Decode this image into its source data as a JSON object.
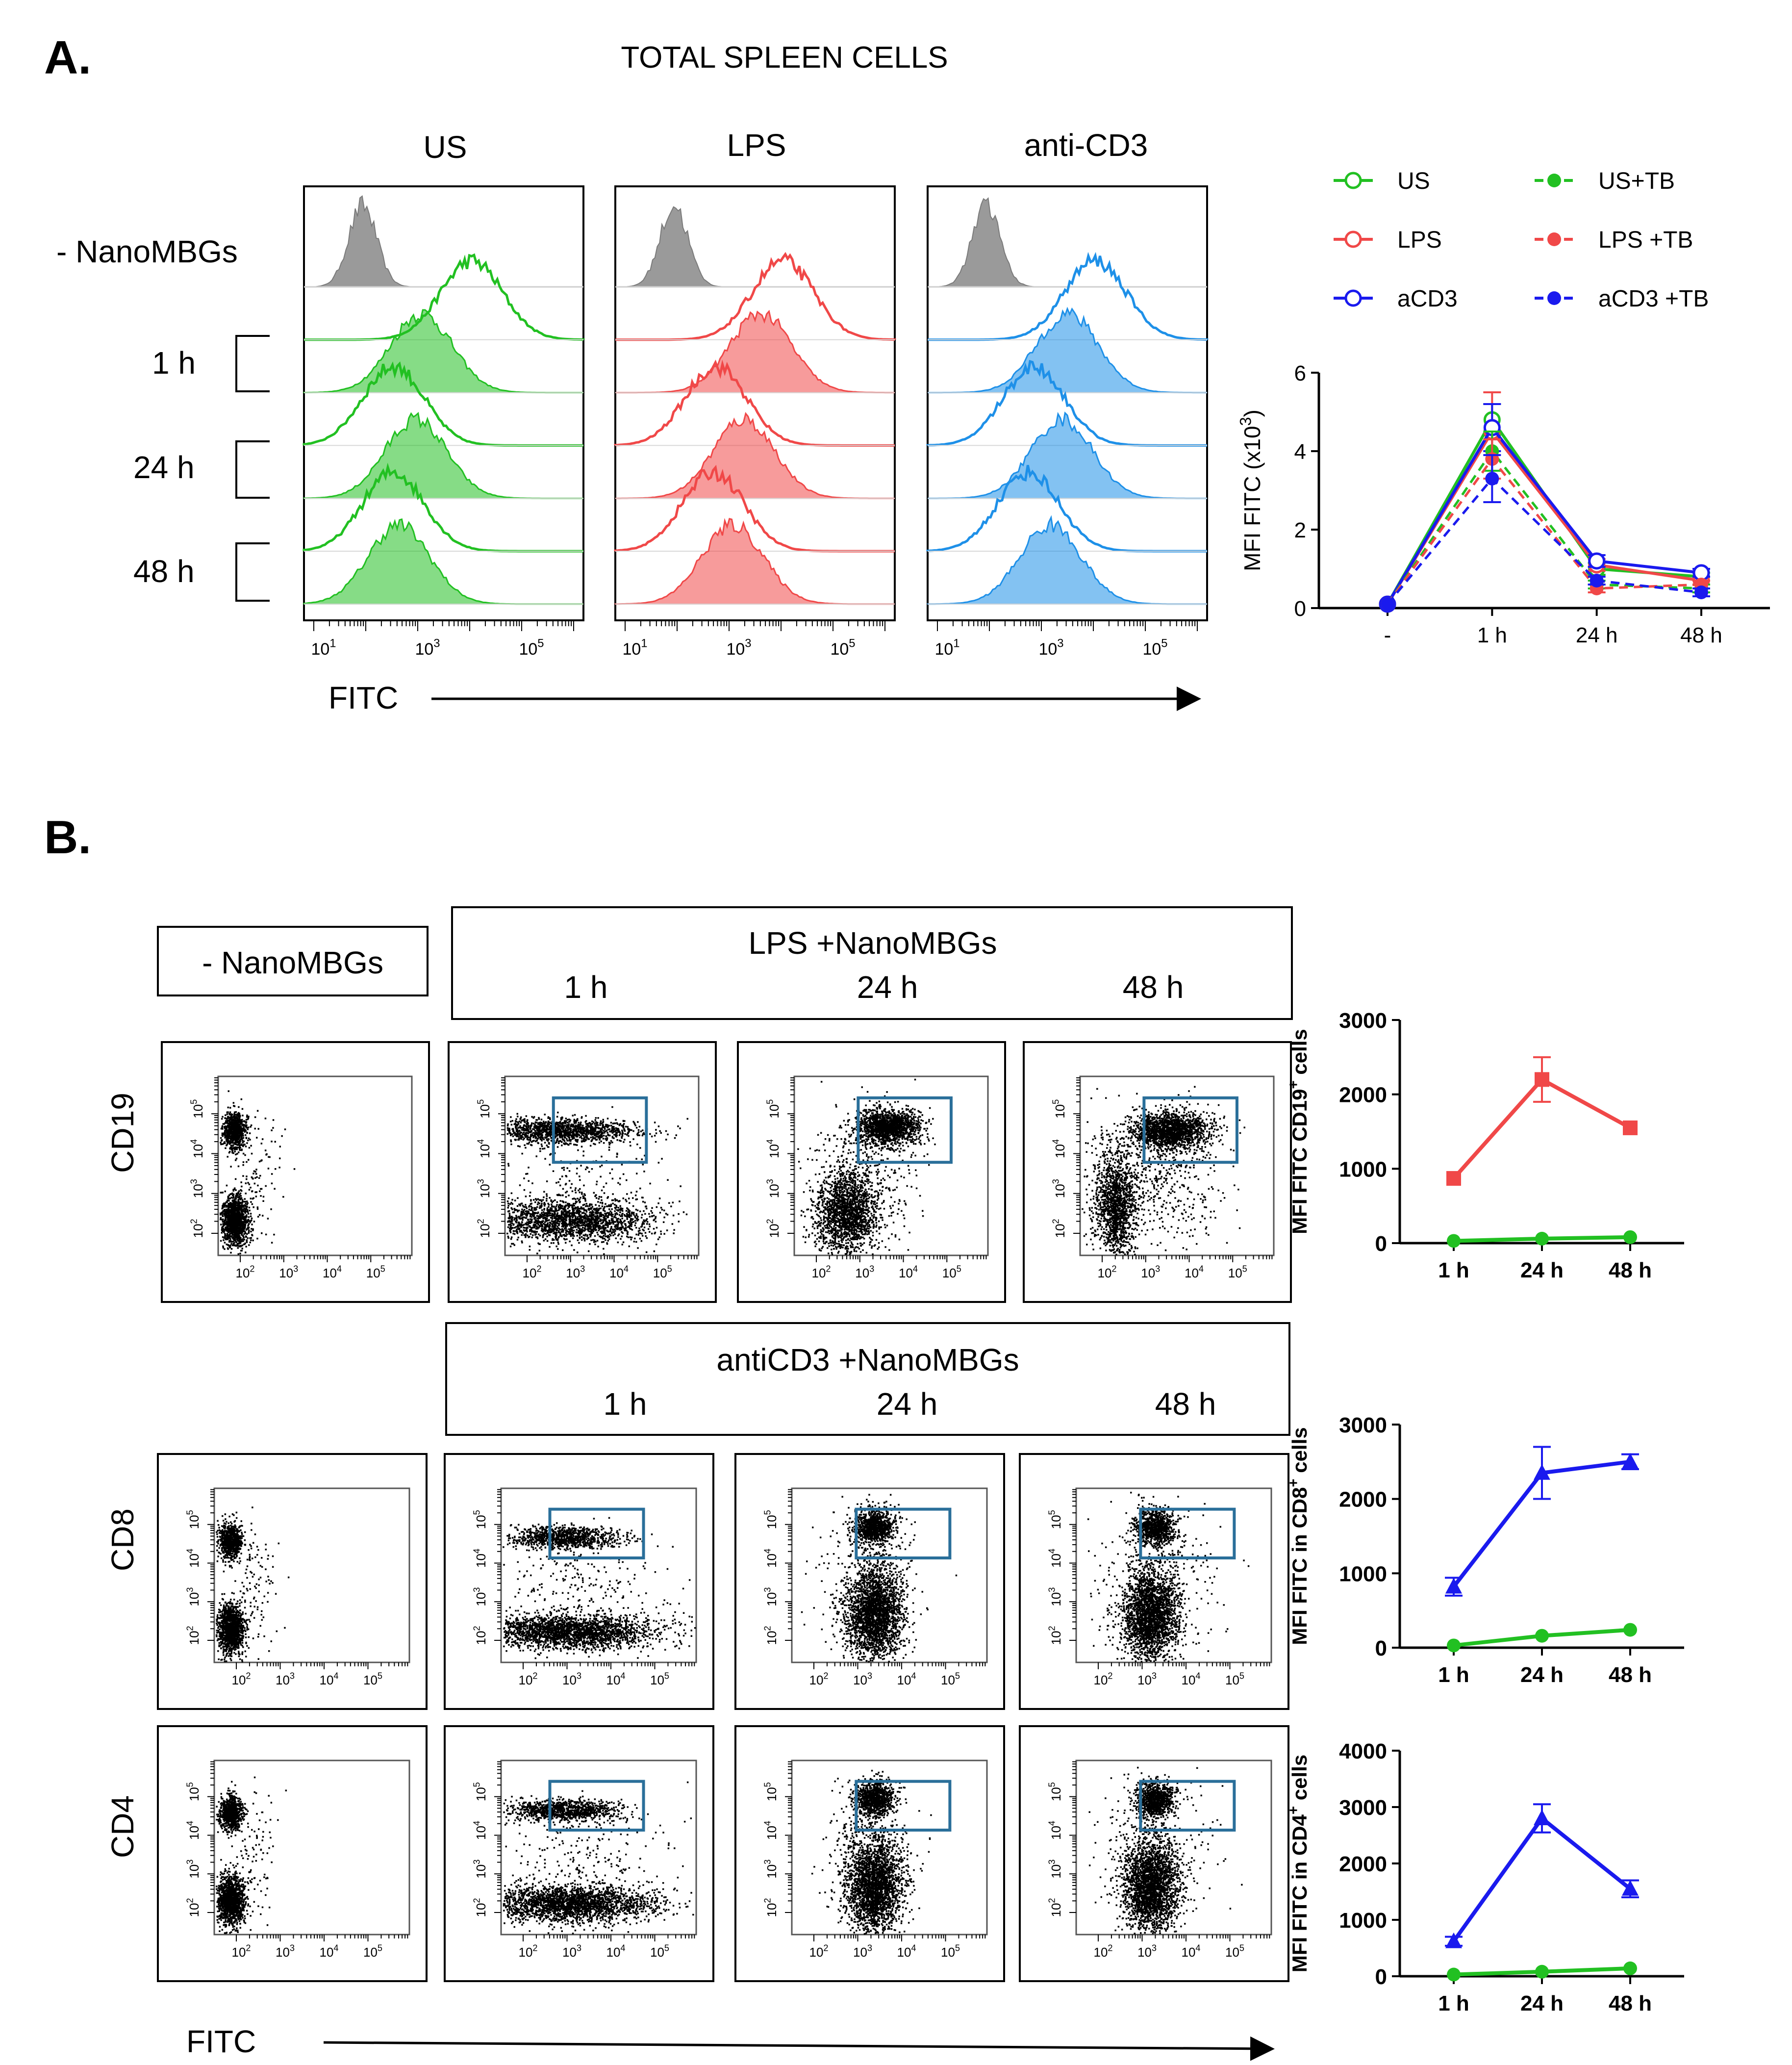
{
  "panel_a": {
    "letter": "A.",
    "title": "TOTAL SPLEEN CELLS",
    "columns": [
      "US",
      "LPS",
      "anti-CD3"
    ],
    "row_labels": [
      "- NanoMBGs",
      "1 h",
      "24 h",
      "48 h"
    ],
    "hist_xticks": [
      "10",
      "10",
      "10"
    ],
    "hist_xtick_exps": [
      "1",
      "3",
      "5"
    ],
    "fitc_label": "FITC"
  },
  "panel_b": {
    "letter": "B.",
    "neg_box_label": "- NanoMBGs",
    "lps_header": "LPS +NanoMBGs",
    "cd3_header": "antiCD3 +NanoMBGs",
    "time_labels": [
      "1 h",
      "24 h",
      "48 h"
    ],
    "row_labels": [
      "CD19",
      "CD8",
      "CD4"
    ],
    "dot_xtick_exps": [
      "2",
      "3",
      "4",
      "5"
    ],
    "dot_ytick_exps": [
      "2",
      "3",
      "4",
      "5"
    ],
    "fitc_label": "FITC"
  },
  "colors": {
    "green": "#22c022",
    "red": "#f04848",
    "blue": "#1a1aee",
    "lightblue": "#1e90e8",
    "gray": "#9a9a9a",
    "gate": "#2a6f9a"
  },
  "chart_data": [
    {
      "id": "mfi_total",
      "type": "line",
      "categories": [
        "-",
        "1 h",
        "24 h",
        "48 h"
      ],
      "ylabel": "MFI FITC (x10",
      "ylabel_sup": "3",
      "ylabel_tail": ")",
      "ylim": [
        0,
        6
      ],
      "yticks": [
        0,
        2,
        4,
        6
      ],
      "legend": [
        "US",
        "LPS",
        "aCD3",
        "US+TB",
        "LPS +TB",
        "aCD3 +TB"
      ],
      "series": [
        {
          "name": "US",
          "values": [
            0.1,
            4.8,
            1.0,
            0.8
          ],
          "err": [
            0,
            0.4,
            0.15,
            0.1
          ]
        },
        {
          "name": "LPS",
          "values": [
            0.1,
            4.5,
            1.1,
            0.7
          ],
          "err": [
            0,
            1.0,
            0.15,
            0.1
          ]
        },
        {
          "name": "aCD3",
          "values": [
            0.1,
            4.6,
            1.2,
            0.9
          ],
          "err": [
            0,
            0.6,
            0.15,
            0.1
          ]
        },
        {
          "name": "US+TB",
          "values": [
            0.1,
            4.0,
            0.6,
            0.5
          ],
          "err": [
            0,
            0.5,
            0.1,
            0.1
          ]
        },
        {
          "name": "LPS +TB",
          "values": [
            0.1,
            3.8,
            0.5,
            0.6
          ],
          "err": [
            0,
            0.5,
            0.1,
            0.1
          ]
        },
        {
          "name": "aCD3 +TB",
          "values": [
            0.1,
            3.3,
            0.7,
            0.4
          ],
          "err": [
            0,
            0.6,
            0.1,
            0.1
          ]
        }
      ]
    },
    {
      "id": "mfi_cd19",
      "type": "line",
      "categories": [
        "1 h",
        "24 h",
        "48 h"
      ],
      "ylabel": "MFI FITC CD19",
      "ylabel_sup": "+",
      "ylabel_tail": " cells",
      "ylim": [
        0,
        3000
      ],
      "yticks": [
        0,
        1000,
        2000,
        3000
      ],
      "series": [
        {
          "name": "LPS",
          "values": [
            870,
            2200,
            1550
          ],
          "err": [
            0,
            300,
            0
          ]
        },
        {
          "name": "US",
          "values": [
            30,
            60,
            80
          ],
          "err": [
            0,
            0,
            0
          ]
        }
      ]
    },
    {
      "id": "mfi_cd8",
      "type": "line",
      "categories": [
        "1 h",
        "24 h",
        "48 h"
      ],
      "ylabel": "MFI FITC in CD8",
      "ylabel_sup": "+",
      "ylabel_tail": " cells",
      "ylim": [
        0,
        3000
      ],
      "yticks": [
        0,
        1000,
        2000,
        3000
      ],
      "series": [
        {
          "name": "aCD3",
          "values": [
            820,
            2350,
            2500
          ],
          "err": [
            120,
            350,
            100
          ]
        },
        {
          "name": "US",
          "values": [
            30,
            160,
            240
          ],
          "err": [
            0,
            0,
            0
          ]
        }
      ]
    },
    {
      "id": "mfi_cd4",
      "type": "line",
      "categories": [
        "1 h",
        "24 h",
        "48 h"
      ],
      "ylabel": "MFI FITC in CD4",
      "ylabel_sup": "+",
      "ylabel_tail": " cells",
      "ylim": [
        0,
        4000
      ],
      "yticks": [
        0,
        1000,
        2000,
        3000,
        4000
      ],
      "series": [
        {
          "name": "aCD3",
          "values": [
            620,
            2800,
            1550
          ],
          "err": [
            80,
            250,
            150
          ]
        },
        {
          "name": "US",
          "values": [
            30,
            80,
            140
          ],
          "err": [
            0,
            0,
            0
          ]
        }
      ]
    }
  ]
}
